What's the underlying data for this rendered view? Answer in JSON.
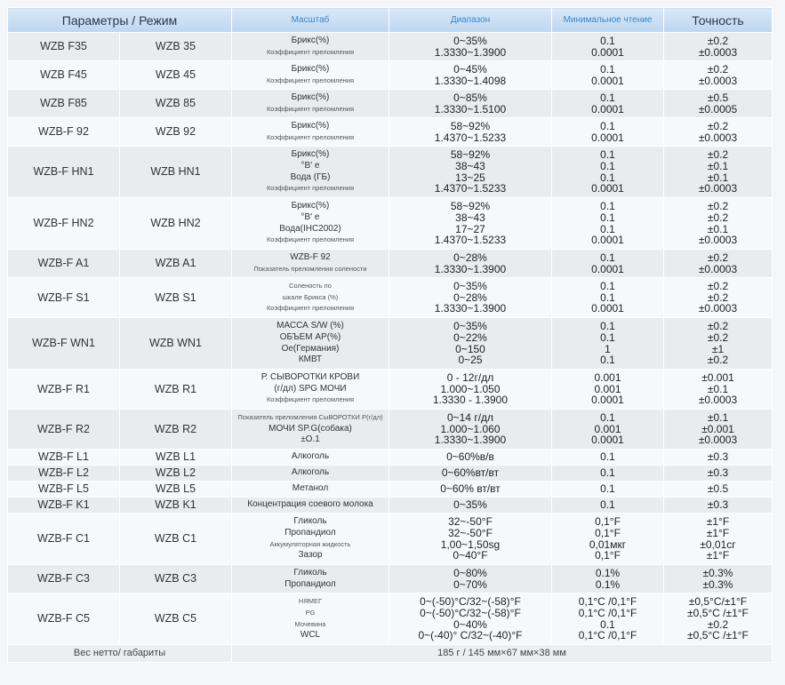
{
  "header": {
    "params": "Параметры / Режим",
    "scale": "Масштаб",
    "range": "Диапазон",
    "min_reading": "Минимальное чтение",
    "accuracy": "Точность"
  },
  "rows": [
    {
      "m1": "WZB F35",
      "m2": "WZB 35",
      "h": 32,
      "scale": [
        {
          "t": "Брикс(%)"
        },
        {
          "t": "Коэффициент преломления",
          "tiny": true
        }
      ],
      "range": [
        "0~35%",
        "1.3330~1.3900"
      ],
      "min": [
        "0.1",
        "0.0001"
      ],
      "acc": [
        "±0.2",
        "±0.0003"
      ]
    },
    {
      "m1": "WZB F45",
      "m2": "WZB 45",
      "h": 32,
      "scale": [
        {
          "t": "Брикс(%)"
        },
        {
          "t": "Коэффициент преломления",
          "tiny": true
        }
      ],
      "range": [
        "0~45%",
        "1.3330~1.4098"
      ],
      "min": [
        "0.1",
        "0.0001"
      ],
      "acc": [
        "±0.2",
        "±0.0003"
      ]
    },
    {
      "m1": "WZB F85",
      "m2": "WZB 85",
      "h": 32,
      "scale": [
        {
          "t": "Брикс(%)"
        },
        {
          "t": "Коэффициент преломления",
          "tiny": true
        }
      ],
      "range": [
        "0~85%",
        "1.3330~1.5100"
      ],
      "min": [
        "0.1",
        "0.0001"
      ],
      "acc": [
        "±0.5",
        "±0.0005"
      ]
    },
    {
      "m1": "WZB-F 92",
      "m2": "WZB 92",
      "h": 32,
      "scale": [
        {
          "t": "Брикс(%)"
        },
        {
          "t": "Коэффициент преломления",
          "tiny": true
        }
      ],
      "range": [
        "58~92%",
        "1.4370~1.5233"
      ],
      "min": [
        "0.1",
        "0.0001"
      ],
      "acc": [
        "±0.2",
        "±0.0003"
      ]
    },
    {
      "m1": "WZB-F HN1",
      "m2": "WZB HN1",
      "h": 58,
      "scale": [
        {
          "t": "Брикс(%)"
        },
        {
          "t": "°B' e"
        },
        {
          "t": "Вода (ГБ)"
        },
        {
          "t": "Коэффициент преломления",
          "tiny": true
        }
      ],
      "range": [
        "58~92%",
        "38~43",
        "13~25",
        "1.4370~1.5233"
      ],
      "min": [
        "0.1",
        "0.1",
        "0.1",
        "0.0001"
      ],
      "acc": [
        "±0.2",
        "±0.1",
        "±0.1",
        "±0.0003"
      ]
    },
    {
      "m1": "WZB-F HN2",
      "m2": "WZB HN2",
      "h": 58,
      "scale": [
        {
          "t": "Брикс(%)"
        },
        {
          "t": "°B' e"
        },
        {
          "t": "Вода(IHC2002)"
        },
        {
          "t": "Коэффициент преломления",
          "tiny": true
        }
      ],
      "range": [
        "58~92%",
        "38~43",
        "17~27",
        "1.4370~1.5233"
      ],
      "min": [
        "0.1",
        "0.1",
        "0.1",
        "0.0001"
      ],
      "acc": [
        "±0.2",
        "±0.2",
        "±0.1",
        "±0.0003"
      ]
    },
    {
      "m1": "WZB-F A1",
      "m2": "WZB A1",
      "h": 32,
      "scale": [
        {
          "t": "WZB-F 92"
        },
        {
          "t": "Показатель преломления солености",
          "tiny": true
        }
      ],
      "range": [
        "0~28%",
        "1.3330~1.3900"
      ],
      "min": [
        "0.1",
        "0.0001"
      ],
      "acc": [
        "±0.2",
        "±0.0003"
      ]
    },
    {
      "m1": "WZB-F S1",
      "m2": "WZB S1",
      "h": 45,
      "scale": [
        {
          "t": "Соленость по",
          "tiny": true
        },
        {
          "t": "шкале Брикса (%)",
          "tiny": true
        },
        {
          "t": "Коэффициент преломления",
          "tiny": true
        }
      ],
      "range": [
        "0~35%",
        "0~28%",
        "1.3330~1.3900"
      ],
      "min": [
        "0.1",
        "0.1",
        "0.0001"
      ],
      "acc": [
        "±0.2",
        "±0.2",
        "±0.0003"
      ]
    },
    {
      "m1": "WZB-F WN1",
      "m2": "WZB WN1",
      "h": 58,
      "scale": [
        {
          "t": "МАССА S/W (%)"
        },
        {
          "t": "ОБЪЕМ АР(%)"
        },
        {
          "t": "Ое(Германия)"
        },
        {
          "t": "КМВТ"
        }
      ],
      "range": [
        "0~35%",
        "0~22%",
        "0~150",
        "0~25"
      ],
      "min": [
        "0.1",
        "0.1",
        "1",
        "0.1"
      ],
      "acc": [
        "±0.2",
        "±0.2",
        "±1",
        "±0.2"
      ]
    },
    {
      "m1": "WZB-F R1",
      "m2": "WZB R1",
      "h": 45,
      "scale": [
        {
          "t": "Р. СЫВОРОТКИ КРОВИ"
        },
        {
          "t": "(г/дл) SPG МОЧИ"
        },
        {
          "t": "Коэффициент преломления",
          "tiny": true
        }
      ],
      "range": [
        "0 - 12г/дл",
        "1.000~1.050",
        "1.3330 - 1.3900"
      ],
      "min": [
        "0.001",
        "0.001",
        "0.0001"
      ],
      "acc": [
        "±0.001",
        "±0.1",
        "±0.0003"
      ]
    },
    {
      "m1": "WZB-F R2",
      "m2": "WZB R2",
      "h": 45,
      "scale": [
        {
          "t": "Показатель преломления СыВОРОТКИ Р(г/дл)",
          "tiny": true
        },
        {
          "t": "МОЧИ SP.G(собака)"
        },
        {
          "t": "±О.1"
        }
      ],
      "range": [
        "0~14 г/дл",
        "1.000~1.060",
        "1.3330~1.3900"
      ],
      "min": [
        "0.1",
        "0.001",
        "0.0001"
      ],
      "acc": [
        "±0.1",
        "±0.001",
        "±0.0003"
      ]
    },
    {
      "m1": "WZB-F L1",
      "m2": "WZB L1",
      "h": 18,
      "scale": [
        {
          "t": "Алкоголь"
        }
      ],
      "range": [
        "0~60%в/в"
      ],
      "min": [
        "0.1"
      ],
      "acc": [
        "±0.3"
      ]
    },
    {
      "m1": "WZB-F L2",
      "m2": "WZB L2",
      "h": 18,
      "scale": [
        {
          "t": "Алкоголь"
        }
      ],
      "range": [
        "0~60%вт/вт"
      ],
      "min": [
        "0.1"
      ],
      "acc": [
        "±0.3"
      ]
    },
    {
      "m1": "WZB-F L5",
      "m2": "WZB L5",
      "h": 18,
      "scale": [
        {
          "t": "Метанол"
        }
      ],
      "range": [
        "0~60% вт/вт"
      ],
      "min": [
        "0.1"
      ],
      "acc": [
        "±0.5"
      ]
    },
    {
      "m1": "WZB-F K1",
      "m2": "WZB K1",
      "h": 18,
      "scale": [
        {
          "t": "Концентрация соевого молока"
        }
      ],
      "range": [
        "0~35%"
      ],
      "min": [
        "0.1"
      ],
      "acc": [
        "±0.3"
      ]
    },
    {
      "m1": "WZB-F C1",
      "m2": "WZB C1",
      "h": 58,
      "scale": [
        {
          "t": "Гликоль"
        },
        {
          "t": "Пропандиол"
        },
        {
          "t": "Аккумуляторная жидкость",
          "tiny": true
        },
        {
          "t": "Зазор"
        }
      ],
      "range": [
        "32~-50°F",
        "32~-50°F",
        "1,00~1,50sg",
        "0~40°F"
      ],
      "min": [
        "0,1°F",
        "0,1°F",
        "0,01мкг",
        "0,1°F"
      ],
      "acc": [
        "±1°F",
        "±1°F",
        "±0,01сг",
        "±1°F"
      ]
    },
    {
      "m1": "WZB-F C3",
      "m2": "WZB C3",
      "h": 32,
      "scale": [
        {
          "t": "Гликоль"
        },
        {
          "t": "Пропандиол"
        }
      ],
      "range": [
        "0~80%",
        "0~70%"
      ],
      "min": [
        "0.1%",
        "0.1%"
      ],
      "acc": [
        "±0.3%",
        "±0.3%"
      ]
    },
    {
      "m1": "WZB-F C5",
      "m2": "WZB C5",
      "h": 58,
      "scale": [
        {
          "t": "НЯМЕГ",
          "tiny": true
        },
        {
          "t": "PG",
          "tiny": true
        },
        {
          "t": "Мочевина",
          "tiny": true
        },
        {
          "t": "WCL"
        }
      ],
      "range": [
        "0~(-50)°C/32~(-58)°F",
        "0~(-50)°C/32~(-58)°F",
        "0~40%",
        "0~(-40)° C/32~(-40)°F"
      ],
      "min": [
        "0,1°C /0,1°F",
        "0,1°C /0,1°F",
        "0.1",
        "0,1°C /0,1°F"
      ],
      "acc": [
        "±0,5°C/±1°F",
        "±0,5°C /±1°F",
        "±0.2",
        "±0,5°C /±1°F"
      ]
    }
  ],
  "footer": {
    "label": "Вес нетто/ габариты",
    "value": "185 г / 145 мм×67 мм×38 мм"
  }
}
